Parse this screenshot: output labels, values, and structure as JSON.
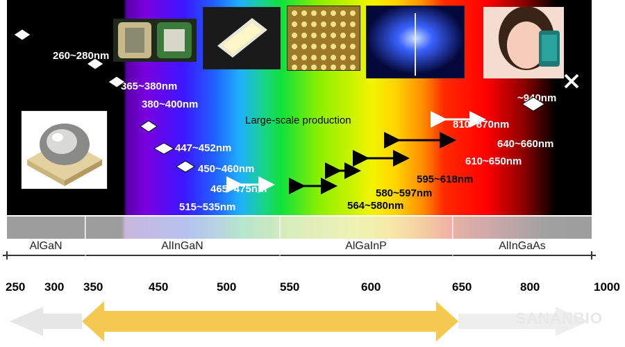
{
  "photos": [
    {
      "name": "led-chip-cluster-photo"
    },
    {
      "name": "led-strip-photo"
    },
    {
      "name": "led-array-photo"
    },
    {
      "name": "blue-light-photo"
    },
    {
      "name": "person-with-phone-photo"
    },
    {
      "name": "led-package-photo"
    }
  ],
  "labels": {
    "production": "Large-scale production",
    "l260": "260~280nm",
    "l365": "365~380nm",
    "l380": "380~400nm",
    "l447": "447~452nm",
    "l450": "450~460nm",
    "l465": "465~475nm",
    "l515": "515~535nm",
    "l564": "564~580nm",
    "l580": "580~597nm",
    "l595": "595~618nm",
    "l610": "610~650nm",
    "l640": "640~660nm",
    "l810": "810~870nm",
    "l940": "~940nm"
  },
  "materials": [
    "AlGaN",
    "AlInGaN",
    "AlGaInP",
    "AlInGaAs"
  ],
  "scale_ticks": [
    "250",
    "300",
    "350",
    "450",
    "500",
    "550",
    "600",
    "650",
    "800",
    "1000"
  ],
  "brand": "SANANBIO",
  "colors": {
    "accent": "#f5c850",
    "black_arrow": "#000000",
    "white_arrow": "#ffffff"
  }
}
